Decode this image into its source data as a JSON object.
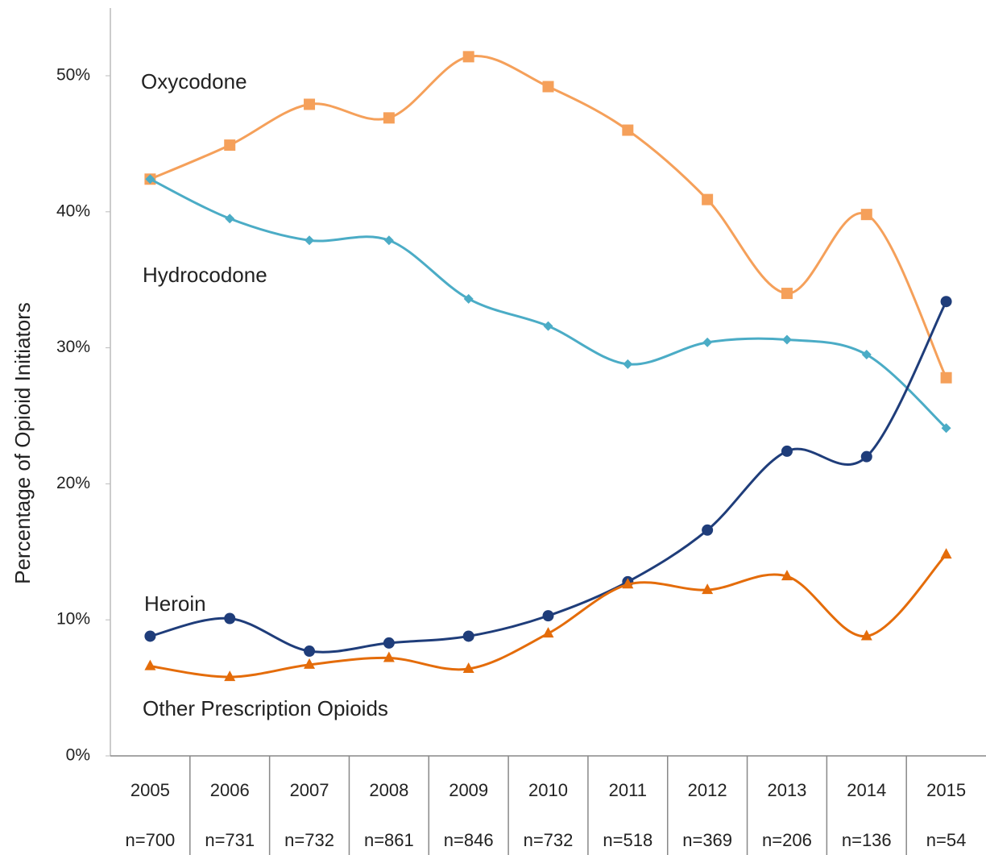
{
  "chart_data": {
    "type": "line",
    "y_label": "Percentage of Opioid Initiators",
    "categories": [
      "2005",
      "2006",
      "2007",
      "2008",
      "2009",
      "2010",
      "2011",
      "2012",
      "2013",
      "2014",
      "2015"
    ],
    "sample_sizes": [
      "n=700",
      "n=731",
      "n=732",
      "n=861",
      "n=846",
      "n=732",
      "n=518",
      "n=369",
      "n=206",
      "n=136",
      "n=54"
    ],
    "series": [
      {
        "name": "Oxycodone",
        "color": "#f5a05a",
        "marker": "square",
        "values": [
          42.4,
          44.9,
          47.9,
          46.9,
          51.4,
          49.2,
          46.0,
          40.9,
          34.0,
          39.8,
          27.8
        ]
      },
      {
        "name": "Hydrocodone",
        "color": "#4bacc6",
        "marker": "diamond",
        "values": [
          42.4,
          39.5,
          37.9,
          37.9,
          33.6,
          31.6,
          28.8,
          30.4,
          30.6,
          29.5,
          24.1
        ]
      },
      {
        "name": "Heroin",
        "color": "#1f3d7a",
        "marker": "circle",
        "values": [
          8.8,
          10.1,
          7.7,
          8.3,
          8.8,
          10.3,
          12.8,
          16.6,
          22.4,
          22.0,
          33.4
        ]
      },
      {
        "name": "Other Prescription Opioids",
        "color": "#e46c0a",
        "marker": "triangle",
        "values": [
          6.6,
          5.8,
          6.7,
          7.2,
          6.4,
          9.0,
          12.6,
          12.2,
          13.2,
          8.8,
          14.8
        ]
      }
    ],
    "ylim": [
      0,
      55
    ],
    "yticks": [
      {
        "value": 0,
        "label": "0%"
      },
      {
        "value": 10,
        "label": "10%"
      },
      {
        "value": 20,
        "label": "20%"
      },
      {
        "value": 30,
        "label": "30%"
      },
      {
        "value": 40,
        "label": "40%"
      },
      {
        "value": 50,
        "label": "50%"
      }
    ],
    "grid": false
  }
}
